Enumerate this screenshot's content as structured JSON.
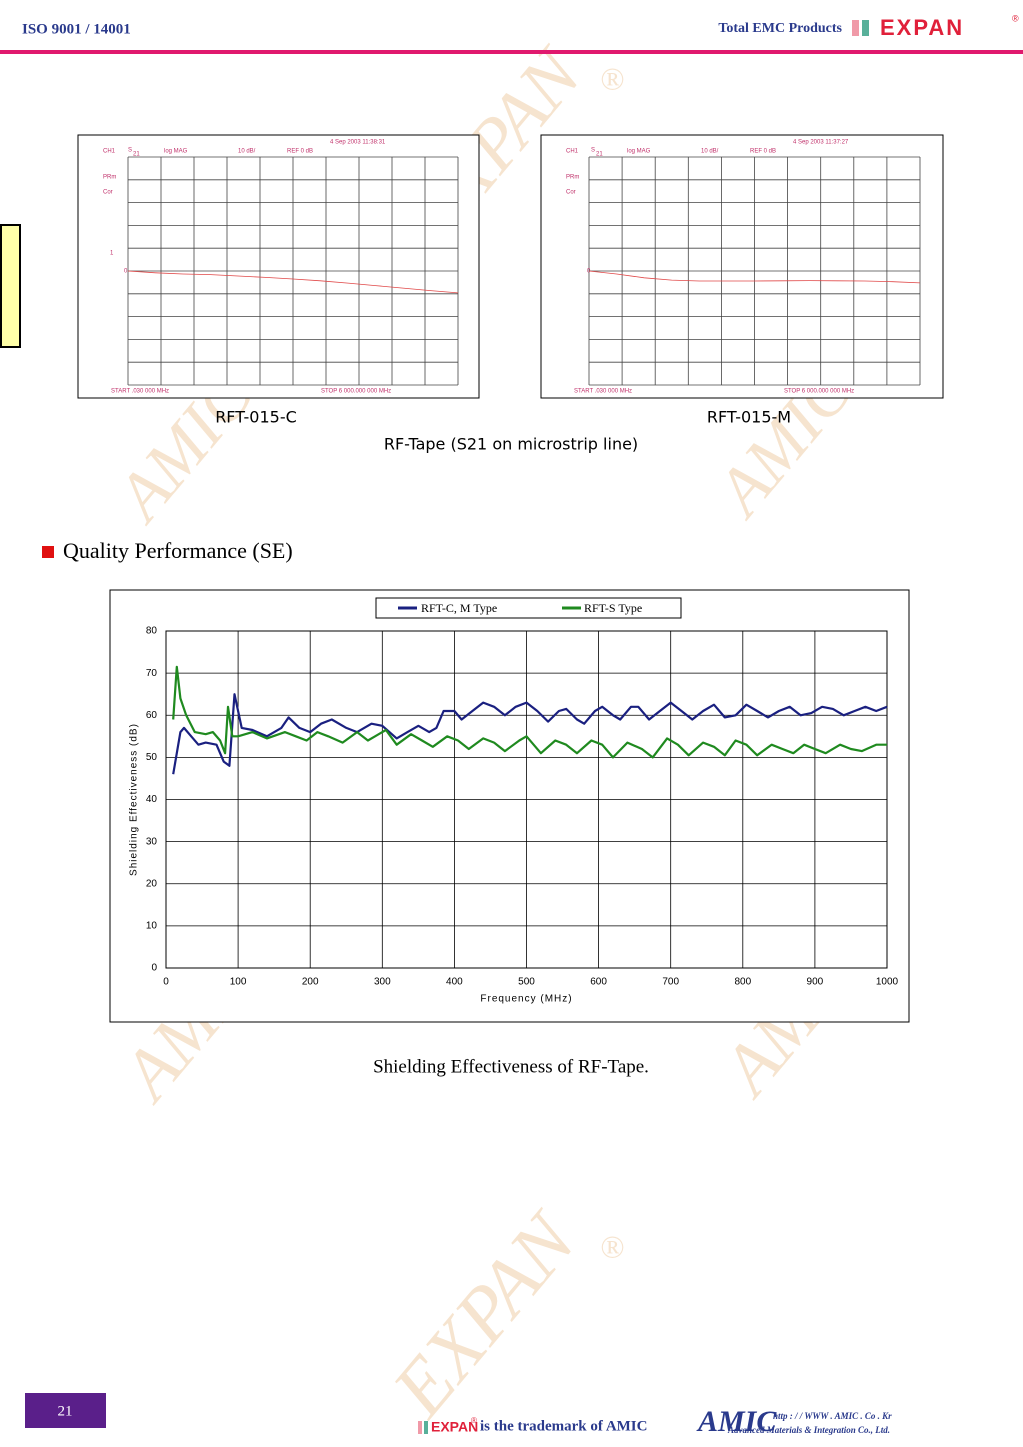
{
  "header": {
    "left": "ISO 9001 / 14001",
    "right": "Total EMC Products",
    "logo": "EXPAN",
    "logo_mark": "®"
  },
  "watermark": {
    "text": "EXPAN",
    "mark": "®",
    "alt": "AMIC"
  },
  "s21_caption": "RF-Tape (S21 on microstrip line)",
  "section_title": "Quality Performance (SE)",
  "chart_data": [
    {
      "type": "line",
      "caption": "RFT-015-C",
      "labels": {
        "channel": "CH1",
        "param": "S",
        "param_sub": "21",
        "format": "log MAG",
        "scale": "10 dB/",
        "ref": "REF 0 dB",
        "date": "4 Sep 2003  11:38:31",
        "prm": "PRm",
        "cor": "Cor",
        "marker": "1",
        "ref_marker": "0",
        "start": "START   .030 000 MHz",
        "stop": "STOP 6 000.000 000 MHz"
      },
      "xlim": [
        0.03,
        6000
      ],
      "ylim": [
        -50,
        50
      ],
      "color": "#e04848",
      "x": [
        0.03,
        500,
        1000,
        1500,
        2000,
        2500,
        3000,
        3500,
        4000,
        4500,
        5000,
        5500,
        6000
      ],
      "values": [
        0,
        -0.8,
        -1.3,
        -1.6,
        -2.2,
        -2.8,
        -3.5,
        -4.3,
        -5.3,
        -6.4,
        -7.5,
        -8.6,
        -9.6
      ]
    },
    {
      "type": "line",
      "caption": "RFT-015-M",
      "labels": {
        "channel": "CH1",
        "param": "S",
        "param_sub": "21",
        "format": "log MAG",
        "scale": "10 dB/",
        "ref": "REF 0 dB",
        "date": "4 Sep 2003  11:37:27",
        "prm": "PRm",
        "cor": "Cor",
        "ref_marker": "0",
        "start": "START   .030 000 MHz",
        "stop": "STOP 6 000.000 000 MHz"
      },
      "xlim": [
        0.03,
        6000
      ],
      "ylim": [
        -50,
        50
      ],
      "color": "#e04848",
      "x": [
        0.03,
        500,
        1000,
        1500,
        2000,
        2500,
        3000,
        3500,
        4000,
        4500,
        5000,
        5500,
        6000
      ],
      "values": [
        0,
        -1.3,
        -3,
        -4,
        -4.4,
        -4.4,
        -4.4,
        -4.3,
        -4.2,
        -4.3,
        -4.4,
        -4.7,
        -5.2
      ]
    },
    {
      "type": "line",
      "caption": "Shielding Effectiveness of RF-Tape.",
      "xlabel": "Frequency (MHz)",
      "ylabel": "Shielding Effectiveness (dB)",
      "xlim": [
        0,
        1000
      ],
      "ylim": [
        0,
        80
      ],
      "xticks": [
        0,
        100,
        200,
        300,
        400,
        500,
        600,
        700,
        800,
        900,
        1000
      ],
      "yticks": [
        0,
        10,
        20,
        30,
        40,
        50,
        60,
        70,
        80
      ],
      "grid": true,
      "series": [
        {
          "name": "RFT-C, M Type",
          "color": "#1a2080",
          "x": [
            10,
            20,
            25,
            35,
            45,
            55,
            70,
            80,
            88,
            95,
            105,
            120,
            140,
            160,
            170,
            185,
            200,
            215,
            230,
            250,
            265,
            285,
            300,
            320,
            335,
            350,
            365,
            375,
            385,
            400,
            410,
            425,
            440,
            455,
            470,
            485,
            500,
            515,
            530,
            545,
            555,
            570,
            580,
            595,
            605,
            620,
            630,
            645,
            655,
            670,
            685,
            700,
            715,
            730,
            745,
            760,
            775,
            790,
            805,
            820,
            835,
            850,
            865,
            880,
            895,
            910,
            925,
            940,
            955,
            970,
            985,
            1000
          ],
          "values": [
            46,
            56,
            57,
            55,
            53,
            53.5,
            53,
            49,
            48,
            65,
            57,
            56.5,
            55,
            57,
            59.5,
            57,
            56,
            58,
            59,
            57,
            56,
            58,
            57.5,
            54.5,
            56,
            57.5,
            56,
            57,
            61,
            61,
            59,
            61,
            63,
            62,
            60,
            62,
            63,
            61,
            58.5,
            61,
            61.5,
            59,
            58,
            61,
            62,
            60,
            59,
            62,
            62,
            59,
            61,
            63,
            61,
            59,
            61,
            62.5,
            59.5,
            60,
            62.5,
            61,
            59.5,
            61,
            62,
            60,
            60.5,
            62,
            61.5,
            60,
            61,
            62,
            61,
            62
          ]
        },
        {
          "name": "RFT-S Type",
          "color": "#1f8a1f",
          "x": [
            10,
            15,
            20,
            28,
            40,
            55,
            65,
            75,
            82,
            86,
            92,
            100,
            120,
            140,
            165,
            180,
            195,
            210,
            225,
            245,
            265,
            280,
            290,
            305,
            320,
            340,
            355,
            370,
            390,
            405,
            420,
            440,
            455,
            470,
            490,
            500,
            520,
            540,
            555,
            570,
            590,
            605,
            620,
            640,
            660,
            675,
            695,
            710,
            725,
            745,
            760,
            775,
            790,
            805,
            820,
            840,
            855,
            870,
            885,
            900,
            915,
            935,
            950,
            965,
            985,
            1000
          ],
          "values": [
            59,
            71.5,
            64,
            60,
            56,
            55.5,
            56,
            54,
            51,
            62,
            55,
            55,
            56,
            54.5,
            56,
            55,
            54,
            56,
            55,
            53.5,
            56,
            54,
            55,
            56.5,
            53,
            55.5,
            54,
            52.5,
            55,
            54,
            52,
            54.5,
            53.5,
            51.5,
            54,
            55,
            51,
            54,
            53,
            51,
            54,
            53,
            50,
            53.5,
            52,
            50,
            54.5,
            53,
            50.5,
            53.5,
            52.5,
            50.5,
            54,
            53,
            50.5,
            53,
            52,
            51,
            53,
            52,
            51,
            53,
            52,
            51.5,
            53,
            53
          ]
        }
      ]
    }
  ],
  "footer": {
    "page": "21",
    "brand": "EXPAN",
    "brand_mark": "®",
    "trademark": "is the trademark of AMIC",
    "company": "AMIC",
    "url": "http : / / WWW . AMIC . Co . Kr",
    "company_name": "Advanced Materials & Integration Co., Ltd."
  }
}
